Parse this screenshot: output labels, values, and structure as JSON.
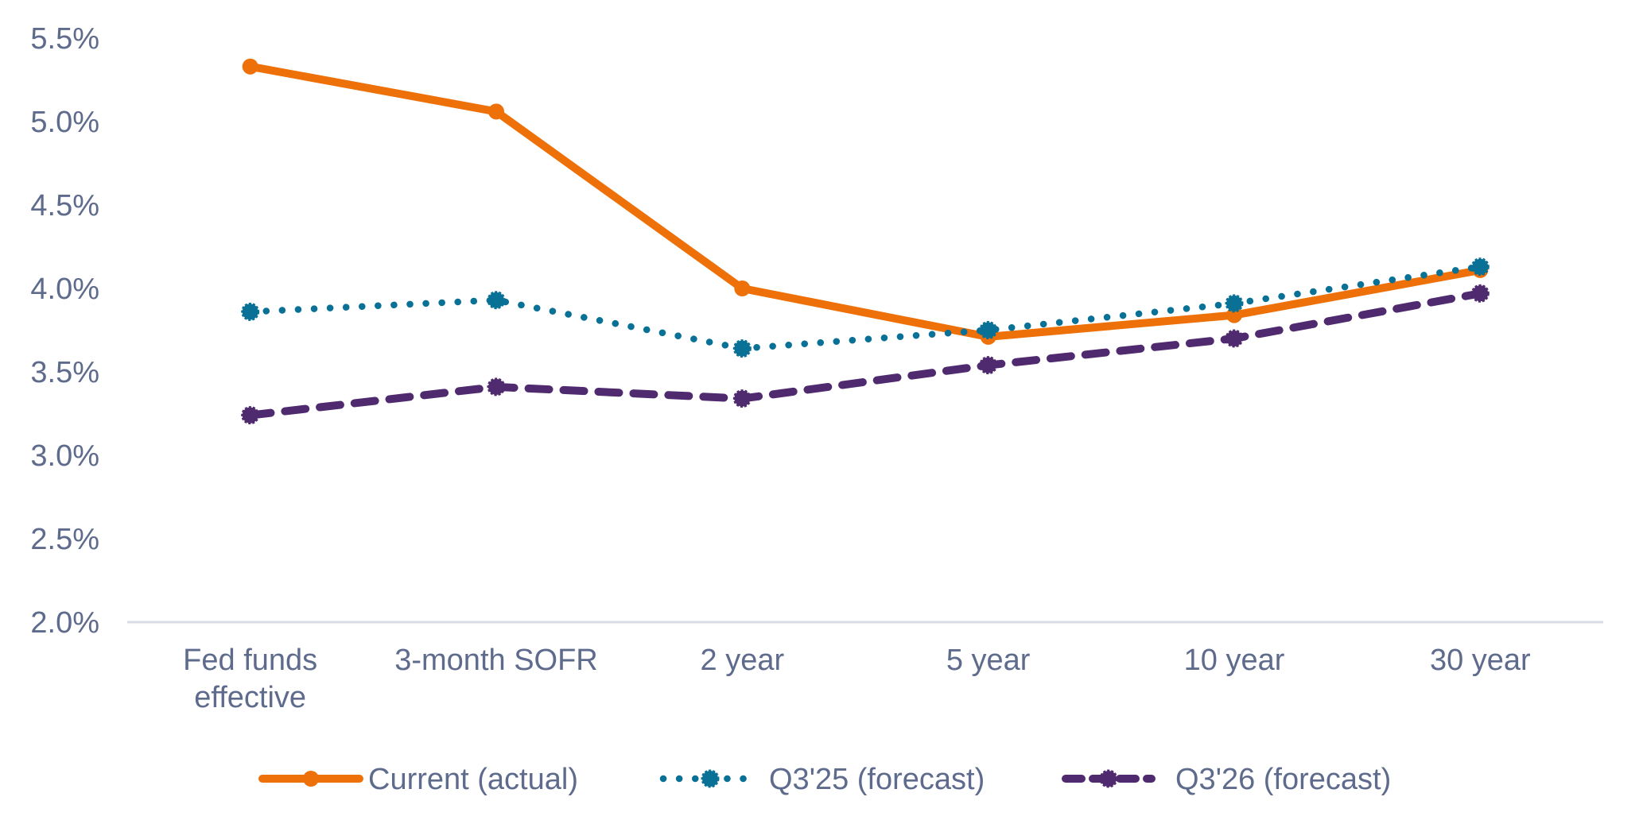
{
  "chart_data": {
    "type": "line",
    "title": "",
    "xlabel": "",
    "ylabel": "",
    "categories": [
      [
        "Fed funds",
        "effective"
      ],
      [
        "3-month SOFR"
      ],
      [
        "2 year"
      ],
      [
        "5 year"
      ],
      [
        "10 year"
      ],
      [
        "30 year"
      ]
    ],
    "ylim": [
      2.0,
      5.5
    ],
    "yticks": [
      2.0,
      2.5,
      3.0,
      3.5,
      4.0,
      4.5,
      5.0,
      5.5
    ],
    "ytick_labels": [
      "2.0%",
      "2.5%",
      "3.0%",
      "3.5%",
      "4.0%",
      "4.5%",
      "5.0%",
      "5.5%"
    ],
    "grid": false,
    "legend_position": "bottom",
    "series": [
      {
        "name": "Current (actual)",
        "color": "#EE7008",
        "line_style": "solid",
        "marker": "circle",
        "values": [
          5.33,
          5.06,
          4.0,
          3.71,
          3.84,
          4.11
        ]
      },
      {
        "name": "Q3'25 (forecast)",
        "color": "#0A7196",
        "line_style": "dotted",
        "marker": "circle",
        "values": [
          3.86,
          3.93,
          3.64,
          3.75,
          3.91,
          4.13
        ]
      },
      {
        "name": "Q3'26 (forecast)",
        "color": "#4F2A6E",
        "line_style": "dashed",
        "marker": "circle",
        "values": [
          3.24,
          3.41,
          3.34,
          3.54,
          3.7,
          3.97
        ]
      }
    ]
  }
}
